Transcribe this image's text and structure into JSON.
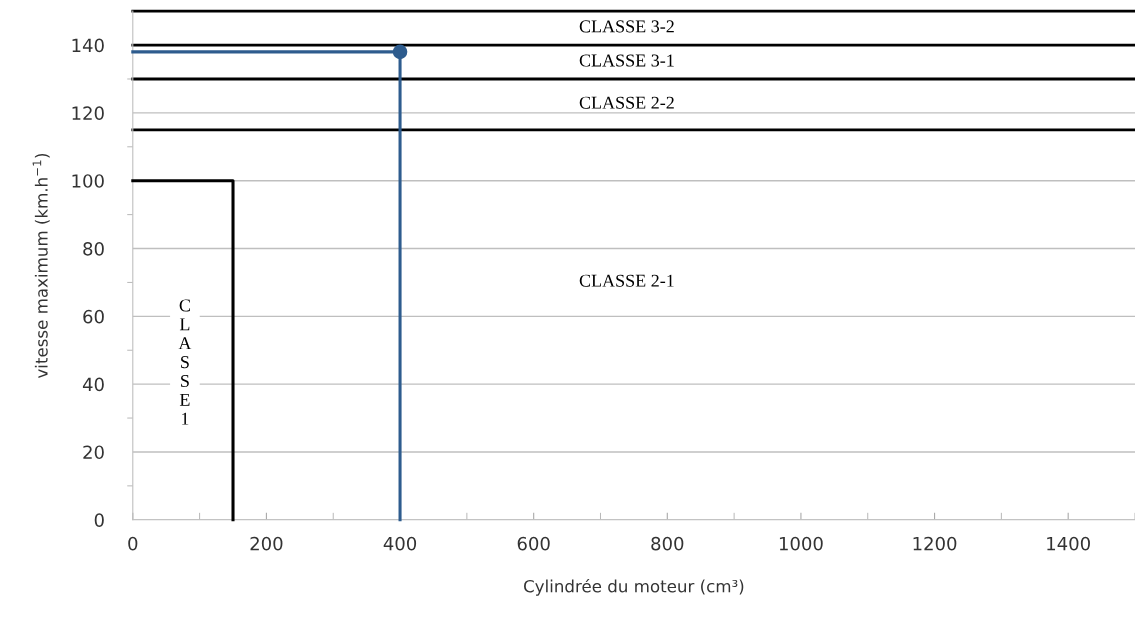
{
  "chart_data": {
    "type": "line",
    "xlabel": "Cylindrée du moteur (cm³)",
    "ylabel": "vitesse maximum (km.h$^{−1}$)",
    "xlim": [
      0,
      1500
    ],
    "ylim": [
      0,
      150
    ],
    "xticks": [
      0,
      200,
      400,
      600,
      800,
      1000,
      1200,
      1400
    ],
    "yticks": [
      0,
      20,
      40,
      60,
      80,
      100,
      120,
      140
    ],
    "grid": "y",
    "legend": false,
    "line_style": "solid",
    "series": [
      {
        "color": "#000000",
        "x": [
          0,
          150,
          150
        ],
        "values": [
          100,
          100,
          0
        ],
        "marker": "none"
      },
      {
        "color": "#2e5c8e",
        "x": [
          0,
          400,
          400
        ],
        "values": [
          138,
          138,
          0
        ],
        "marker": "none"
      },
      {
        "type": "scatter",
        "color": "#2e5c8e",
        "x": [
          400
        ],
        "values": [
          138
        ],
        "marker": "circle"
      }
    ],
    "ref_lines": [
      {
        "axis": "y",
        "value": 150,
        "color": "#000000"
      },
      {
        "axis": "y",
        "value": 140,
        "color": "#000000"
      },
      {
        "axis": "y",
        "value": 130,
        "color": "#000000"
      },
      {
        "axis": "y",
        "value": 115,
        "color": "#000000"
      }
    ],
    "annotations": [
      "CLASSE 3-2",
      "CLASSE 3-1",
      "CLASSE 2-2",
      "CLASSE 2-1",
      "CLASSE 1"
    ]
  }
}
